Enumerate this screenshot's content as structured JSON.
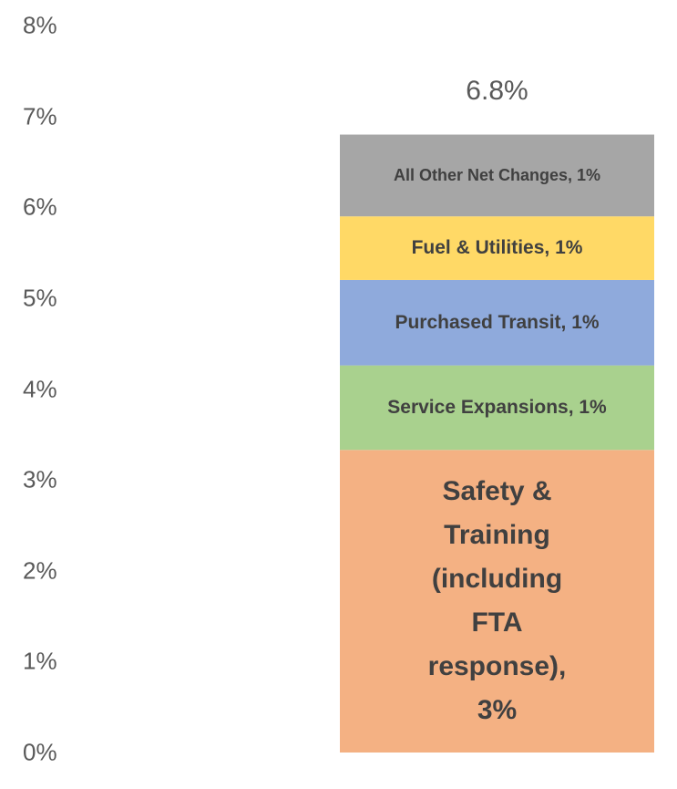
{
  "chart_data": {
    "type": "stacked_bar",
    "categories": [
      null
    ],
    "series": [
      {
        "name": "Safety & Training (including FTA response)",
        "color": "#f4b183",
        "values": [
          3.33
        ],
        "value_labels": [
          "Safety & Training (including FTA response), 3%"
        ]
      },
      {
        "name": "Service Expansions",
        "color": "#a9d18e",
        "values": [
          0.93
        ],
        "value_labels": [
          "Service Expansions, 1%"
        ]
      },
      {
        "name": "Purchased Transit",
        "color": "#8faadc",
        "values": [
          0.94
        ],
        "value_labels": [
          "Purchased Transit, 1%"
        ]
      },
      {
        "name": "Fuel & Utilities",
        "color": "#ffd966",
        "values": [
          0.7
        ],
        "value_labels": [
          "Fuel & Utilities, 1%"
        ]
      },
      {
        "name": "All Other Net Changes",
        "color": "#a6a6a6",
        "values": [
          0.9
        ],
        "value_labels": [
          "All Other Net Changes, 1%"
        ]
      }
    ],
    "totals": [
      6.8
    ],
    "total_labels": [
      "6.8%"
    ],
    "ylim": [
      0,
      8
    ],
    "yticks": [
      {
        "value": 0,
        "label": "0%"
      },
      {
        "value": 1,
        "label": "1%"
      },
      {
        "value": 2,
        "label": "2%"
      },
      {
        "value": 3,
        "label": "3%"
      },
      {
        "value": 4,
        "label": "4%"
      },
      {
        "value": 5,
        "label": "5%"
      },
      {
        "value": 6,
        "label": "6%"
      },
      {
        "value": 7,
        "label": "7%"
      },
      {
        "value": 8,
        "label": "8%"
      }
    ],
    "grid": false
  }
}
